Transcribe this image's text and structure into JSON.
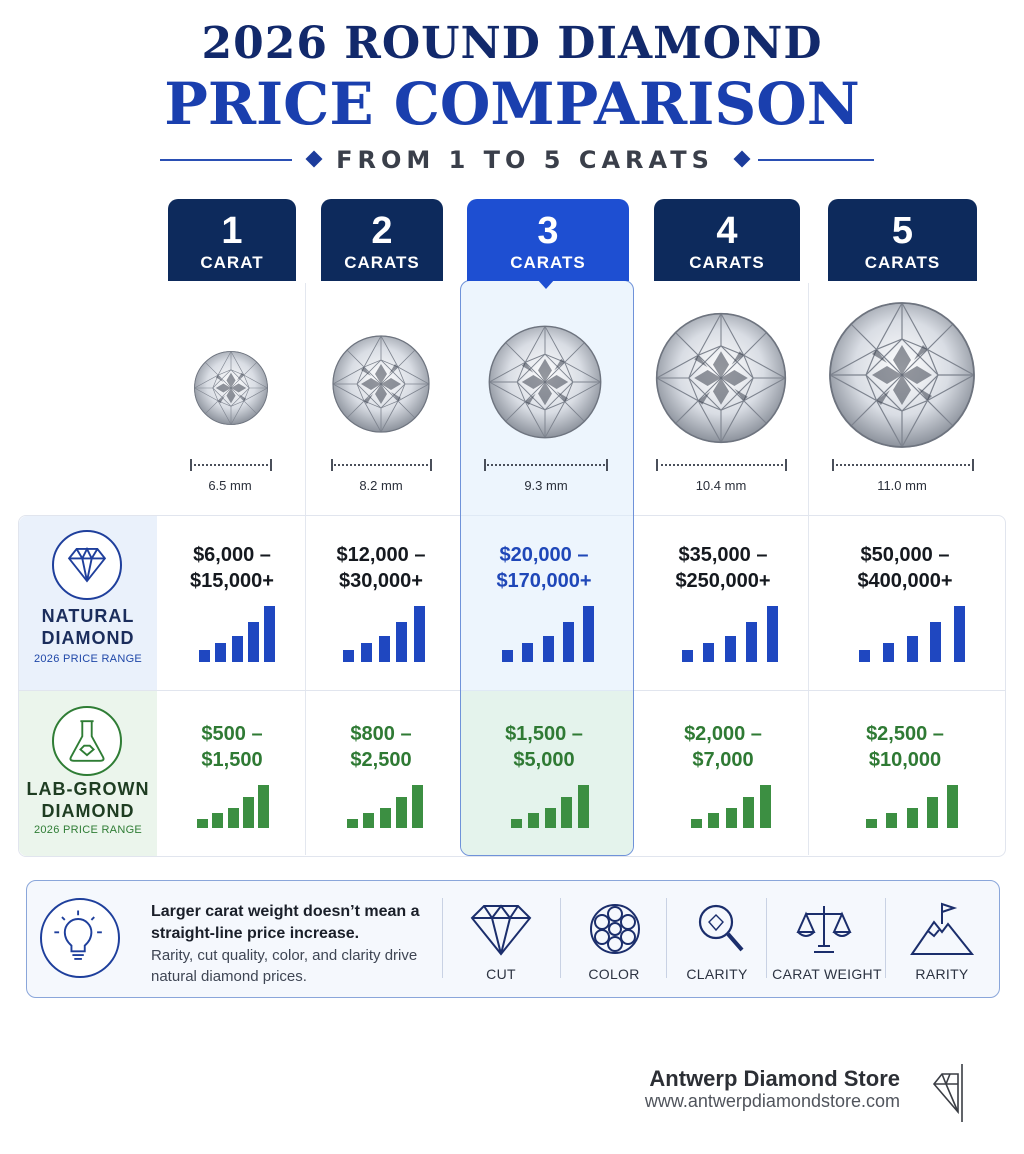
{
  "header": {
    "title_line1": "2026 ROUND DIAMOND",
    "title_line2": "PRICE COMPARISON",
    "subtitle": "FROM 1 TO 5 CARATS"
  },
  "columns": [
    {
      "number": "1",
      "label": "CARAT",
      "size": "6.5 mm"
    },
    {
      "number": "2",
      "label": "CARATS",
      "size": "8.2 mm"
    },
    {
      "number": "3",
      "label": "CARATS",
      "size": "9.3 mm",
      "highlighted": true
    },
    {
      "number": "4",
      "label": "CARATS",
      "size": "10.4 mm"
    },
    {
      "number": "5",
      "label": "CARATS",
      "size": "11.0 mm"
    }
  ],
  "rows": {
    "natural": {
      "name_line1": "NATURAL",
      "name_line2": "DIAMOND",
      "sub": "2026 PRICE RANGE",
      "icon": "diamond-icon",
      "color": "#1f47c0",
      "prices": [
        {
          "line1": "$6,000 –",
          "line2": "$15,000+"
        },
        {
          "line1": "$12,000 –",
          "line2": "$30,000+"
        },
        {
          "line1": "$20,000 –",
          "line2": "$170,000+"
        },
        {
          "line1": "$35,000 –",
          "line2": "$250,000+"
        },
        {
          "line1": "$50,000 –",
          "line2": "$400,000+"
        }
      ]
    },
    "lab": {
      "name_line1": "LAB-GROWN",
      "name_line2": "DIAMOND",
      "sub": "2026 PRICE RANGE",
      "icon": "flask-icon",
      "color": "#3c8f42",
      "prices": [
        {
          "line1": "$500 –",
          "line2": "$1,500"
        },
        {
          "line1": "$800 –",
          "line2": "$2,500"
        },
        {
          "line1": "$1,500 –",
          "line2": "$5,000"
        },
        {
          "line1": "$2,000 –",
          "line2": "$7,000"
        },
        {
          "line1": "$2,500 –",
          "line2": "$10,000"
        }
      ]
    }
  },
  "info": {
    "icon": "lightbulb-icon",
    "title": "Larger carat weight doesn’t mean a straight-line price increase.",
    "text": "Rarity, cut quality, color, and clarity drive natural diamond prices.",
    "factors": [
      {
        "label": "CUT",
        "icon": "diamond-outline-icon"
      },
      {
        "label": "COLOR",
        "icon": "color-wheel-icon"
      },
      {
        "label": "CLARITY",
        "icon": "magnifier-icon"
      },
      {
        "label": "CARAT WEIGHT",
        "icon": "scale-icon"
      },
      {
        "label": "RARITY",
        "icon": "mountain-flag-icon"
      }
    ]
  },
  "footer": {
    "brand": "Antwerp Diamond Store",
    "url": "www.antwerpdiamondstore.com",
    "logo_icon": "diamond-logo-icon"
  },
  "colors": {
    "navy": "#0d2a5c",
    "accent_blue": "#1e4fd2",
    "natural_blue": "#1f47c0",
    "lab_green": "#3c8f42"
  }
}
